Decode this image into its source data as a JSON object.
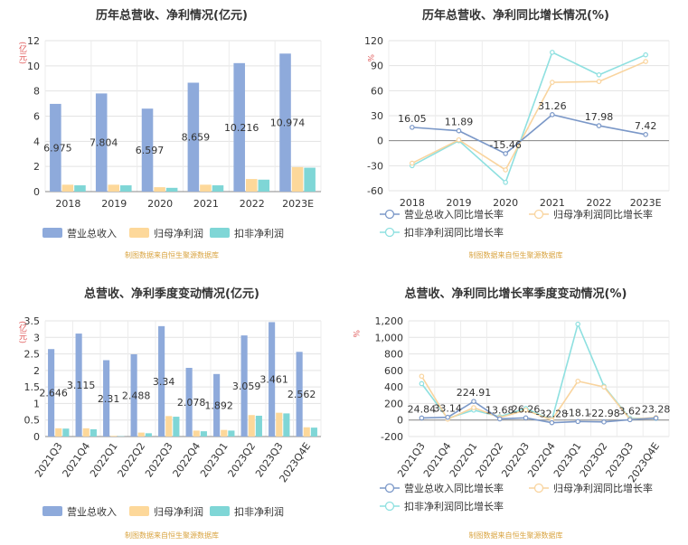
{
  "source_note": "制图数据来自恒生聚源数据库",
  "legend_bar": [
    "营业总收入",
    "归母净利润",
    "扣非净利润"
  ],
  "legend_line": [
    "营业总收入同比增长率",
    "归母净利润同比增长率",
    "扣非净利润同比增长率"
  ],
  "colors": {
    "revenue": "#8eaadb",
    "parent": "#fdd89a",
    "deducted": "#7fd6d6",
    "line_revenue": "#7b98c8",
    "line_parent": "#f9d49e",
    "line_deducted": "#8ee0e0"
  },
  "chart_data": [
    {
      "type": "bar",
      "title": "历年总营收、净利情况(亿元)",
      "ylabel": "(亿元)",
      "categories": [
        "2018",
        "2019",
        "2020",
        "2021",
        "2022",
        "2023E"
      ],
      "ylim": [
        0,
        12
      ],
      "yticks": [
        0,
        2,
        4,
        6,
        8,
        10,
        12
      ],
      "series": [
        {
          "name": "营业总收入",
          "values": [
            6.975,
            7.804,
            6.597,
            8.659,
            10.216,
            10.974
          ]
        },
        {
          "name": "归母净利润",
          "values": [
            0.55,
            0.55,
            0.35,
            0.55,
            1.0,
            1.95
          ]
        },
        {
          "name": "扣非净利润",
          "values": [
            0.5,
            0.5,
            0.3,
            0.5,
            0.95,
            1.9
          ]
        }
      ],
      "labels": [
        "6.975",
        "7.804",
        "6.597",
        "8.659",
        "10.216",
        "10.974"
      ]
    },
    {
      "type": "line",
      "title": "历年总营收、净利同比增长情况(%)",
      "ylabel": "%",
      "categories": [
        "2018",
        "2019",
        "2020",
        "2021",
        "2022",
        "2023E"
      ],
      "ylim": [
        -60,
        120
      ],
      "yticks": [
        -60,
        -30,
        0,
        30,
        60,
        90,
        120
      ],
      "series": [
        {
          "name": "营业总收入同比增长率",
          "values": [
            16.05,
            11.89,
            -15.46,
            31.26,
            17.98,
            7.42
          ]
        },
        {
          "name": "归母净利润同比增长率",
          "values": [
            -27,
            1,
            -35,
            70,
            71,
            95
          ]
        },
        {
          "name": "扣非净利润同比增长率",
          "values": [
            -30,
            0,
            -50,
            106,
            79,
            103
          ]
        }
      ],
      "labels": [
        "16.05",
        "11.89",
        "-15.46",
        "31.26",
        "17.98",
        "7.42"
      ]
    },
    {
      "type": "bar",
      "title": "总营收、净利季度变动情况(亿元)",
      "ylabel": "(亿元)",
      "categories": [
        "2021Q3",
        "2021Q4",
        "2022Q1",
        "2022Q2",
        "2022Q3",
        "2022Q4",
        "2023Q1",
        "2023Q2",
        "2023Q3",
        "2023Q4E"
      ],
      "ylim": [
        0,
        3.5
      ],
      "yticks": [
        0,
        0.5,
        1,
        1.5,
        2,
        2.5,
        3,
        3.5
      ],
      "series": [
        {
          "name": "营业总收入",
          "values": [
            2.646,
            3.115,
            2.31,
            2.488,
            3.34,
            2.078,
            1.892,
            3.059,
            3.461,
            2.562
          ]
        },
        {
          "name": "归母净利润",
          "values": [
            0.25,
            0.25,
            0.02,
            0.12,
            0.62,
            0.18,
            0.2,
            0.65,
            0.72,
            0.28
          ]
        },
        {
          "name": "扣非净利润",
          "values": [
            0.24,
            0.22,
            0.01,
            0.1,
            0.6,
            0.16,
            0.18,
            0.63,
            0.7,
            0.27
          ]
        }
      ],
      "labels": [
        "2.646",
        "3.115",
        "2.31",
        "2.488",
        "3.34",
        "2.078",
        "1.892",
        "3.059",
        "3.461",
        "2.562"
      ]
    },
    {
      "type": "line",
      "title": "总营收、净利同比增长率季度变动情况(%)",
      "ylabel": "%",
      "categories": [
        "2021Q3",
        "2021Q4",
        "2022Q1",
        "2022Q2",
        "2022Q3",
        "2022Q4",
        "2023Q1",
        "2023Q2",
        "2023Q3",
        "2023Q4E"
      ],
      "ylim": [
        -200,
        1200
      ],
      "yticks": [
        -200,
        0,
        200,
        400,
        600,
        800,
        1000,
        1200
      ],
      "tick_labels": [
        "-200",
        "0",
        "200",
        "400",
        "600",
        "800",
        "1,000",
        "1,200"
      ],
      "series": [
        {
          "name": "营业总收入同比增长率",
          "values": [
            24.84,
            33.14,
            224.91,
            13.68,
            26.26,
            -32.28,
            -18.1,
            -22.98,
            3.62,
            23.28
          ]
        },
        {
          "name": "归母净利润同比增长率",
          "values": [
            530,
            10,
            150,
            30,
            120,
            0,
            470,
            400,
            10,
            30
          ]
        },
        {
          "name": "扣非净利润同比增长率",
          "values": [
            440,
            20,
            120,
            40,
            140,
            0,
            1160,
            410,
            20,
            20
          ]
        }
      ],
      "labels": [
        "24.84",
        "33.14",
        "224.91",
        "13.68",
        "26.26",
        "-32.28",
        "-18.1",
        "-22.98",
        "3.62",
        "23.28"
      ]
    }
  ]
}
